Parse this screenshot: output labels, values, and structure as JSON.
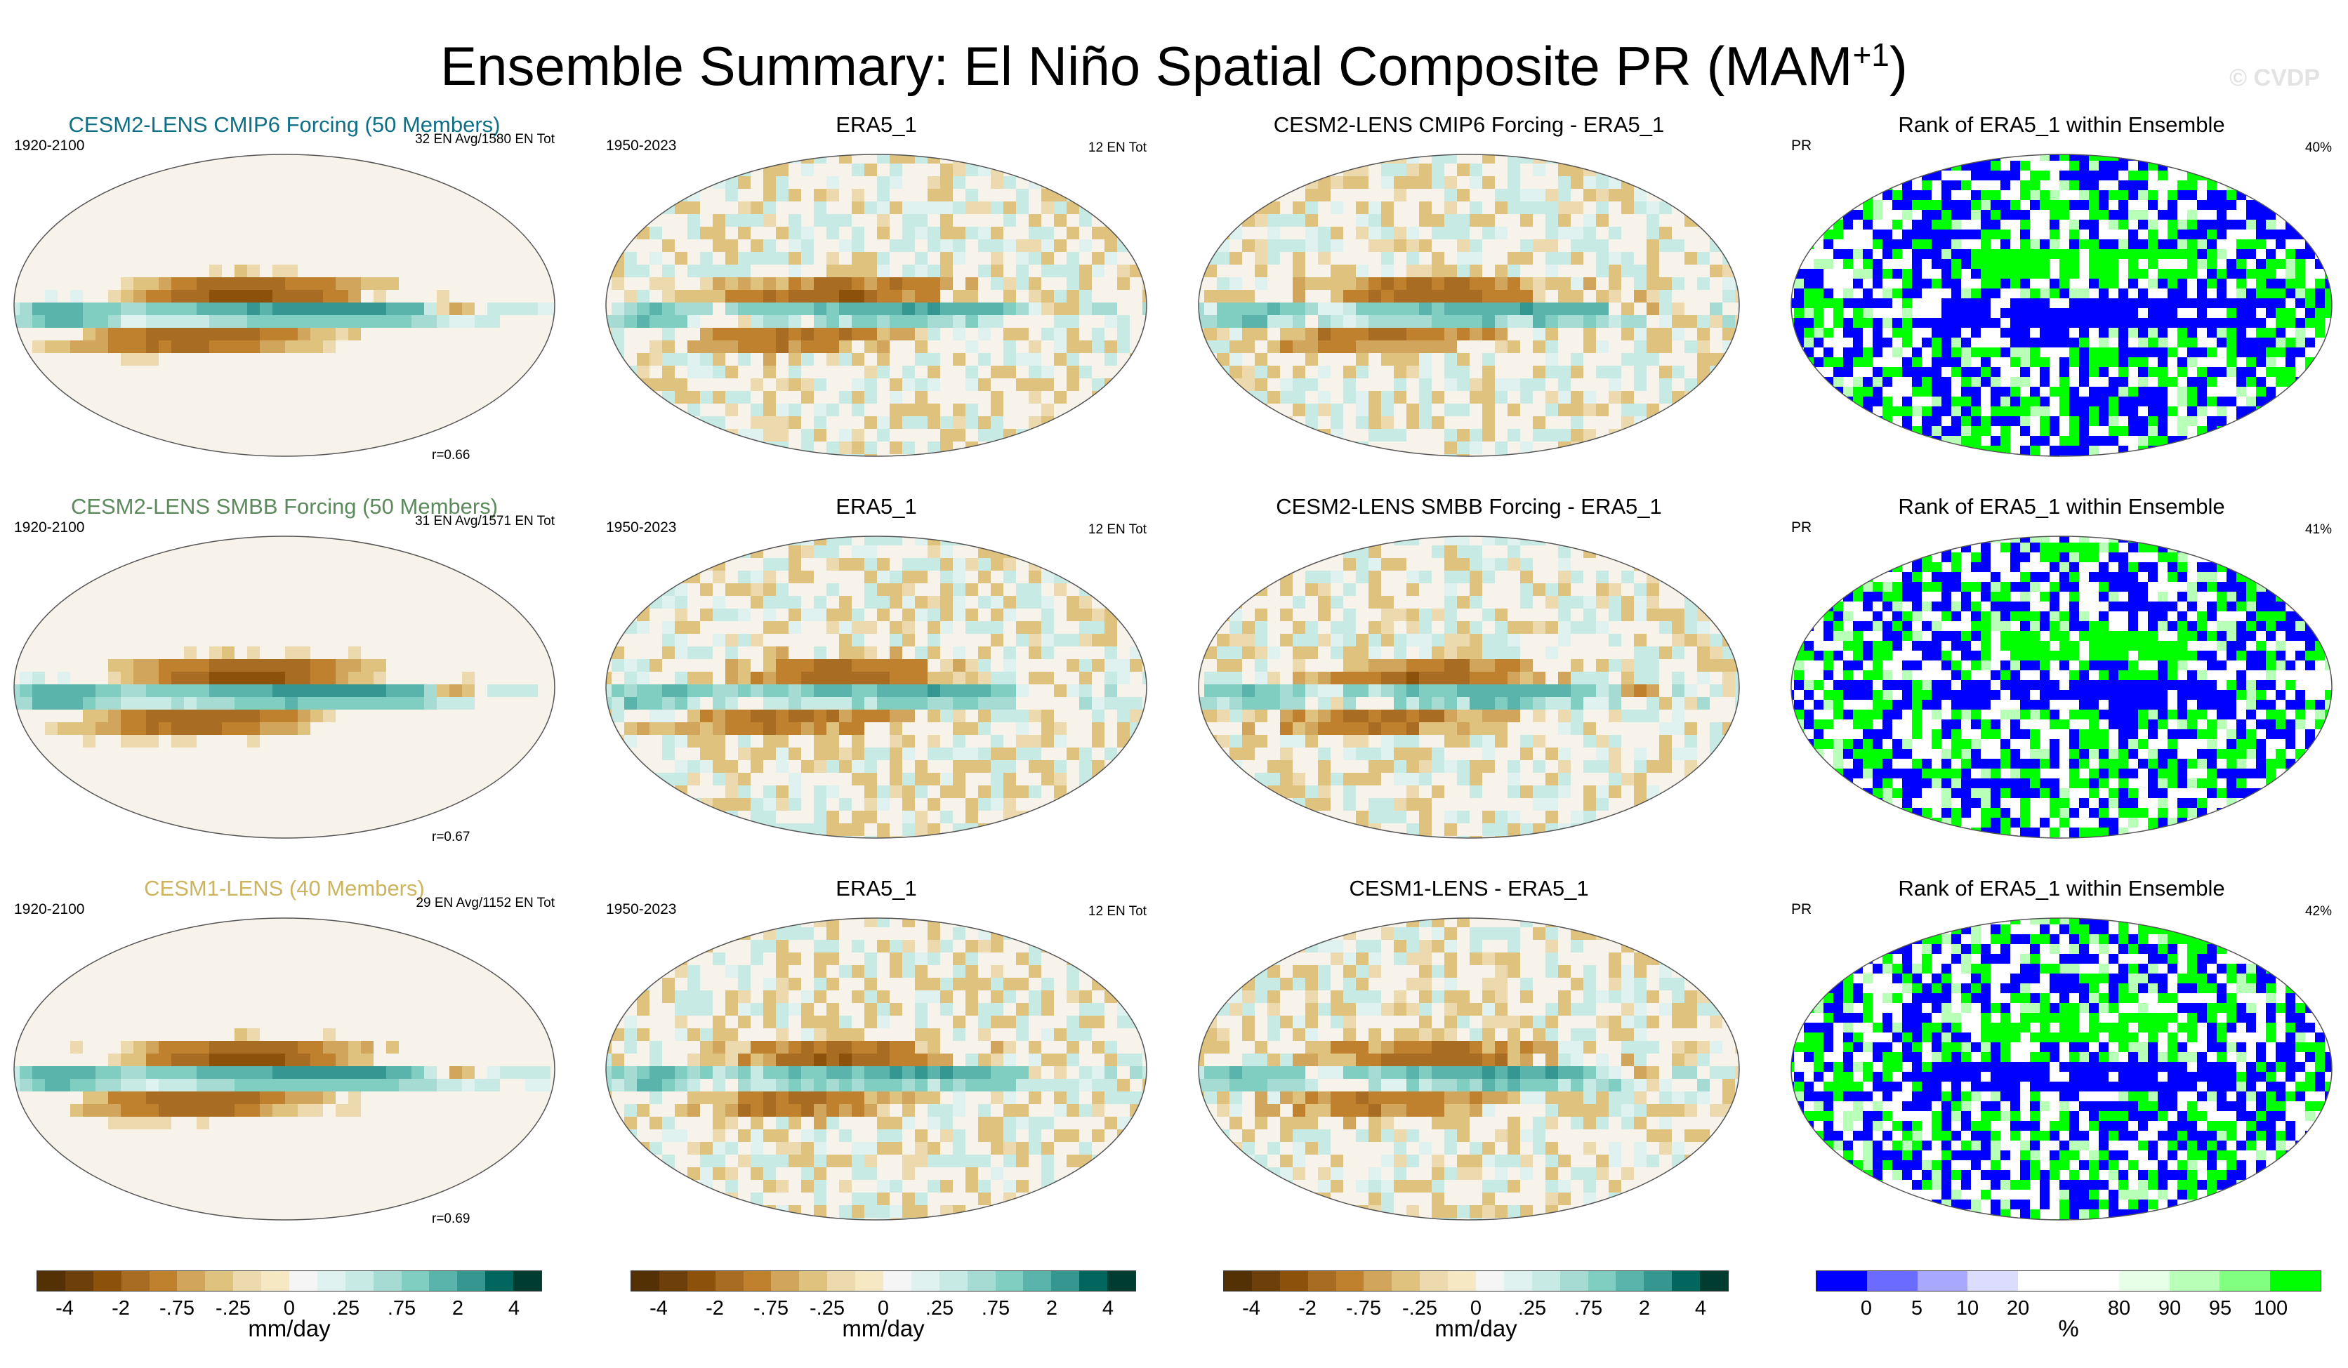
{
  "title": {
    "main": "Ensemble Summary: El Niño Spatial Composite PR (MAM",
    "sup": "+1",
    "close": ")"
  },
  "watermark": "© CVDP",
  "colors": {
    "brbg": [
      "#543005",
      "#6d3f0a",
      "#8c510a",
      "#a86d22",
      "#bf812d",
      "#d1a55b",
      "#dfc27d",
      "#ecd9ad",
      "#f6e8c3",
      "#f5f5f5",
      "#e0f2ef",
      "#c7eae5",
      "#a5dbd3",
      "#80cdc1",
      "#5ab4ac",
      "#35978f",
      "#01665e",
      "#003c30"
    ],
    "rank": [
      "#0000ff",
      "#6b6bff",
      "#a8a8ff",
      "#dcdcff",
      "#ffffff",
      "#ffffff",
      "#e6ffe6",
      "#b8ffb8",
      "#80ff80",
      "#00ff00"
    ],
    "model1_title": "#0e6f85",
    "model2_title": "#5c8a5c",
    "model3_title": "#cdb560"
  },
  "chart_data": [
    {
      "type": "heatmap",
      "title": "CESM2-LENS CMIP6 Forcing (50 Members)",
      "period": "1920-2100",
      "note": "32 EN Avg/1580 EN Tot",
      "r": "r=0.66",
      "kind": "model"
    },
    {
      "type": "heatmap",
      "title": "ERA5_1",
      "period": "1950-2023",
      "note": "12 EN Tot",
      "r": "",
      "kind": "obs"
    },
    {
      "type": "heatmap",
      "title": "CESM2-LENS CMIP6 Forcing - ERA5_1",
      "period": "",
      "note": "",
      "r": "",
      "kind": "diff"
    },
    {
      "type": "heatmap",
      "title": "Rank of ERA5_1 within Ensemble",
      "period": "PR",
      "note": "40%",
      "r": "",
      "kind": "rank"
    },
    {
      "type": "heatmap",
      "title": "CESM2-LENS SMBB Forcing (50 Members)",
      "period": "1920-2100",
      "note": "31 EN Avg/1571 EN Tot",
      "r": "r=0.67",
      "kind": "model"
    },
    {
      "type": "heatmap",
      "title": "ERA5_1",
      "period": "1950-2023",
      "note": "12 EN Tot",
      "r": "",
      "kind": "obs"
    },
    {
      "type": "heatmap",
      "title": "CESM2-LENS SMBB Forcing - ERA5_1",
      "period": "",
      "note": "",
      "r": "",
      "kind": "diff"
    },
    {
      "type": "heatmap",
      "title": "Rank of ERA5_1 within Ensemble",
      "period": "PR",
      "note": "41%",
      "r": "",
      "kind": "rank"
    },
    {
      "type": "heatmap",
      "title": "CESM1-LENS (40 Members)",
      "period": "1920-2100",
      "note": "29 EN Avg/1152 EN Tot",
      "r": "r=0.69",
      "kind": "model"
    },
    {
      "type": "heatmap",
      "title": "ERA5_1",
      "period": "1950-2023",
      "note": "12 EN Tot",
      "r": "",
      "kind": "obs"
    },
    {
      "type": "heatmap",
      "title": "CESM1-LENS - ERA5_1",
      "period": "",
      "note": "",
      "r": "",
      "kind": "diff"
    },
    {
      "type": "heatmap",
      "title": "Rank of ERA5_1 within Ensemble",
      "period": "PR",
      "note": "42%",
      "r": "",
      "kind": "rank"
    }
  ],
  "colorbars": {
    "precip": {
      "ticks": [
        "-4",
        "-2",
        "-.75",
        "-.25",
        "0",
        ".25",
        ".75",
        "2",
        "4"
      ],
      "label": "mm/day"
    },
    "rank": {
      "ticks": [
        "0",
        "5",
        "10",
        "20",
        "80",
        "90",
        "95",
        "100"
      ],
      "label": "%"
    }
  }
}
